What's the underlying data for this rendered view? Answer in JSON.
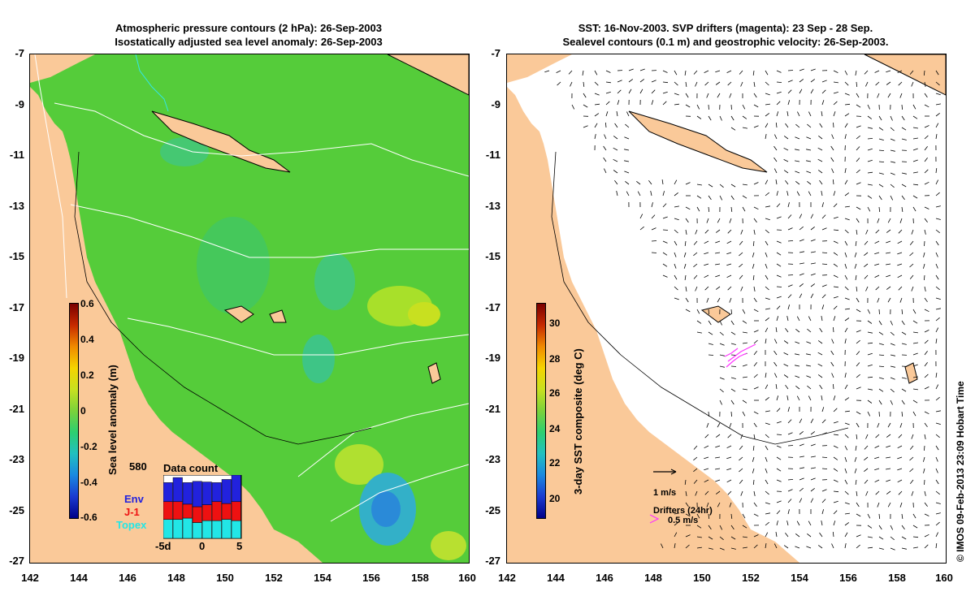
{
  "left_panel": {
    "title_line1": "Atmospheric pressure contours (2 hPa): 26-Sep-2003",
    "title_line2": "Isostatically adjusted sea level anomaly: 26-Sep-2003",
    "colorbar": {
      "title": "Sea level anomaly (m)",
      "ticks": [
        "0.6",
        "0.4",
        "0.2",
        "0",
        "-0.2",
        "-0.4",
        "-0.6"
      ]
    },
    "data_count": {
      "title": "Data count",
      "max_label": "580",
      "sources": [
        "Env",
        "J-1",
        "Topex"
      ],
      "source_colors": [
        "#2222dd",
        "#ee1111",
        "#22e6e6"
      ],
      "x_ticks": [
        "-5d",
        "0",
        "5"
      ],
      "bars": [
        {
          "topex": 0.3,
          "j1": 0.28,
          "env": 0.3
        },
        {
          "topex": 0.3,
          "j1": 0.28,
          "env": 0.38
        },
        {
          "topex": 0.32,
          "j1": 0.22,
          "env": 0.34
        },
        {
          "topex": 0.25,
          "j1": 0.25,
          "env": 0.4
        },
        {
          "topex": 0.28,
          "j1": 0.25,
          "env": 0.36
        },
        {
          "topex": 0.28,
          "j1": 0.3,
          "env": 0.3
        },
        {
          "topex": 0.3,
          "j1": 0.25,
          "env": 0.38
        },
        {
          "topex": 0.28,
          "j1": 0.3,
          "env": 0.42
        }
      ]
    }
  },
  "right_panel": {
    "title_line1": "SST: 16-Nov-2003. SVP drifters (magenta): 23 Sep - 28 Sep.",
    "title_line2": "Sealevel contours (0.1 m) and geostrophic velocity: 26-Sep-2003.",
    "colorbar": {
      "title": "3-day SST composite (deg C)",
      "ticks": [
        "30",
        "28",
        "26",
        "24",
        "22",
        "20"
      ]
    },
    "velocity_key": "1 m/s",
    "drifter_key_title": "Drifters (24hr)",
    "drifter_key_label": "0.5 m/s",
    "drifter_color": "#ff33ff"
  },
  "axes": {
    "y_ticks": [
      "-7",
      "-9",
      "-11",
      "-13",
      "-15",
      "-17",
      "-19",
      "-21",
      "-23",
      "-25",
      "-27"
    ],
    "x_ticks": [
      "142",
      "144",
      "146",
      "148",
      "150",
      "152",
      "154",
      "156",
      "158",
      "160"
    ]
  },
  "colors": {
    "land": "#fac999",
    "sea_base": "#55cc3a"
  },
  "side_credit": "© IMOS 09-Feb-2013 23:09 Hobart Time"
}
